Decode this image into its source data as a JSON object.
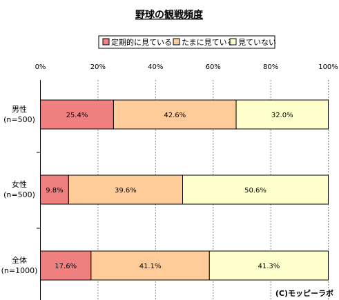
{
  "chart_data": {
    "type": "bar",
    "orientation": "horizontal",
    "stacked": "percent",
    "title": "野球の観戦頻度",
    "categories": [
      {
        "label": "男性",
        "sublabel": "(n=500)"
      },
      {
        "label": "女性",
        "sublabel": "(n=500)"
      },
      {
        "label": "全体",
        "sublabel": "(n=1000)"
      }
    ],
    "series": [
      {
        "name": "定期的に見ている",
        "color": "#f08080",
        "values": [
          25.4,
          9.8,
          17.6
        ],
        "labels": [
          "25.4%",
          "9.8%",
          "17.6%"
        ]
      },
      {
        "name": "たまに見ている",
        "color": "#ffcc99",
        "values": [
          42.6,
          39.6,
          41.1
        ],
        "labels": [
          "42.6%",
          "39.6%",
          "41.1%"
        ]
      },
      {
        "name": "見ていない",
        "color": "#ffffcc",
        "values": [
          32.0,
          50.6,
          41.3
        ],
        "labels": [
          "32.0%",
          "50.6%",
          "41.3%"
        ]
      }
    ],
    "xlim": [
      0,
      100
    ],
    "xticks": [
      "0%",
      "20%",
      "40%",
      "60%",
      "80%",
      "100%"
    ],
    "grid": true,
    "legend": "top"
  },
  "credit": "(C)モッピーラボ"
}
